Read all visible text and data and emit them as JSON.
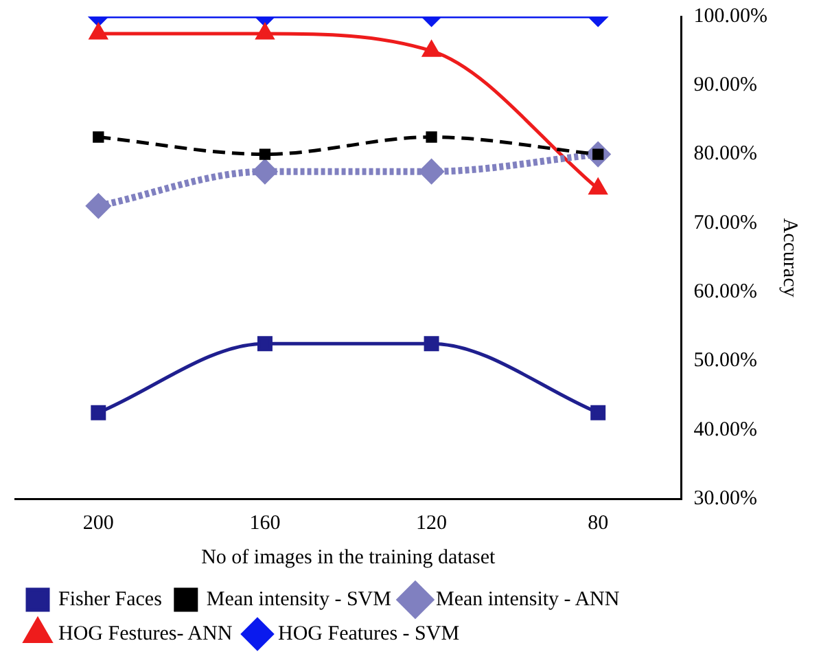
{
  "chart_data": {
    "type": "line",
    "xlabel": "No of images in the training dataset",
    "ylabel": "Accuracy",
    "categories": [
      "200",
      "160",
      "120",
      "80"
    ],
    "series": [
      {
        "name": "Fisher Faces",
        "color": "#1f1f8f",
        "marker": "square",
        "line_style": "solid",
        "values": [
          42.5,
          52.5,
          52.5,
          42.5
        ]
      },
      {
        "name": "Mean intensity - SVM",
        "color": "#000000",
        "marker": "square",
        "line_style": "dashed",
        "values": [
          82.5,
          80,
          82.5,
          80
        ]
      },
      {
        "name": "Mean intensity - ANN",
        "color": "#8080c0",
        "marker": "diamond",
        "line_style": "dotted",
        "values": [
          72.5,
          77.5,
          77.5,
          80
        ]
      },
      {
        "name": "HOG Festures- ANN",
        "color": "#ee1c1c",
        "marker": "triangle",
        "line_style": "solid",
        "values": [
          97.5,
          97.5,
          95,
          75
        ]
      },
      {
        "name": "HOG Features - SVM",
        "color": "#0a1aee",
        "marker": "diamond",
        "line_style": "solid",
        "values": [
          100,
          100,
          100,
          100
        ]
      }
    ],
    "ylim": [
      30,
      100
    ],
    "yticks": [
      {
        "value": 30,
        "label": "30.00%"
      },
      {
        "value": 40,
        "label": "40.00%"
      },
      {
        "value": 50,
        "label": "50.00%"
      },
      {
        "value": 60,
        "label": "60.00%"
      },
      {
        "value": 70,
        "label": "70.00%"
      },
      {
        "value": 80,
        "label": "80.00%"
      },
      {
        "value": 90,
        "label": "90.00%"
      },
      {
        "value": 100,
        "label": "100.00%"
      }
    ],
    "grid": false,
    "legend": "bottom"
  }
}
